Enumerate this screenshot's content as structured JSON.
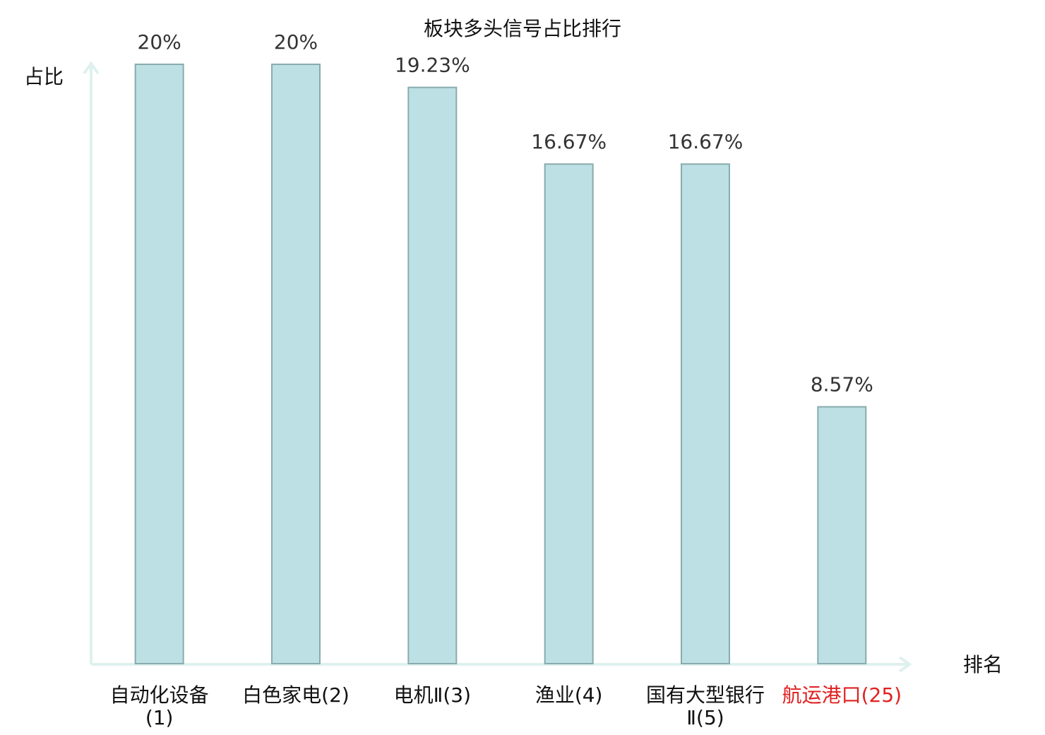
{
  "chart_data": {
    "type": "bar",
    "title": "板块多头信号占比排行",
    "y_label": "占比",
    "x_label": "排名",
    "categories": [
      "自动化设备(1)",
      "白色家电(2)",
      "电机Ⅱ(3)",
      "渔业(4)",
      "国有大型银行Ⅱ(5)",
      "航运港口(25)"
    ],
    "category_colors": [
      "#111111",
      "#111111",
      "#111111",
      "#111111",
      "#111111",
      "#e02020"
    ],
    "values": [
      20,
      20,
      19.23,
      16.67,
      16.67,
      8.57
    ],
    "value_labels": [
      "20%",
      "20%",
      "19.23%",
      "16.67%",
      "16.67%",
      "8.57%"
    ],
    "color": "#bce0e3",
    "ylim": [
      0,
      20
    ]
  }
}
